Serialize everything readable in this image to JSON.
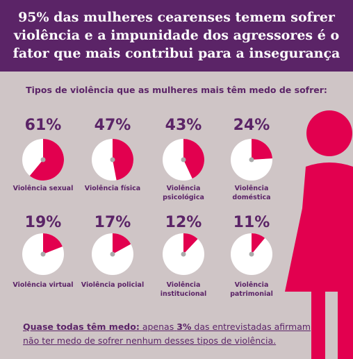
{
  "chart_data": {
    "type": "pie",
    "title": [
      "95% das mulheres cearenses temem sofrer",
      "violência e a impunidade dos agressores é o",
      "fator que mais contribui para a insegurança"
    ],
    "subtitle": "Tipos de violência que as mulheres mais têm medo de sofrer:",
    "categories": [
      "Violência sexual",
      "Violência física",
      "Violência psicológica",
      "Violência doméstica",
      "Violência virtual",
      "Violência policial",
      "Violência institucional",
      "Violência patrimonial"
    ],
    "values": [
      61,
      47,
      43,
      24,
      19,
      17,
      12,
      11
    ],
    "value_labels": [
      "61%",
      "47%",
      "43%",
      "24%",
      "19%",
      "17%",
      "12%",
      "11%"
    ],
    "color": "#e2004f",
    "note": {
      "lead": "Quase todas têm medo:",
      "before": "apenas",
      "highlight": "3%",
      "after": "das entrevistadas afirmam não ter medo de sofrer nenhum desses tipos de violência."
    }
  }
}
